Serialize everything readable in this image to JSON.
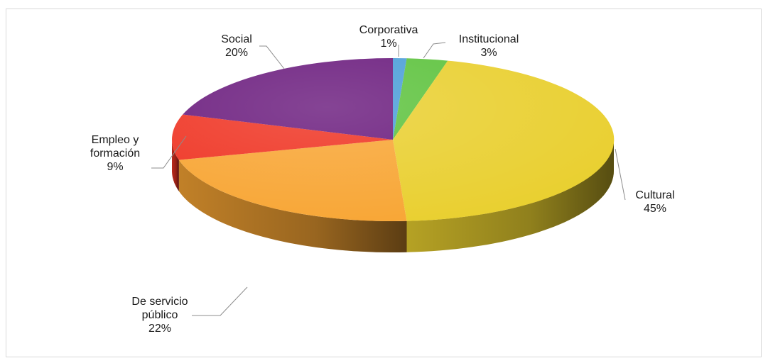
{
  "chart_data": {
    "type": "pie",
    "title": "",
    "legend": "none",
    "slices": [
      {
        "name": "Corporativa",
        "name_lines": [
          "Corporativa"
        ],
        "value": 1,
        "value_label": "1%",
        "color": "#4a9ed8"
      },
      {
        "name": "Institucional",
        "name_lines": [
          "Institucional"
        ],
        "value": 3,
        "value_label": "3%",
        "color": "#5cc23c"
      },
      {
        "name": "Cultural",
        "name_lines": [
          "Cultural"
        ],
        "value": 45,
        "value_label": "45%",
        "color": "#e9cf2e"
      },
      {
        "name": "De servicio público",
        "name_lines": [
          "De servicio",
          "público"
        ],
        "value": 22,
        "value_label": "22%",
        "color": "#f8a533"
      },
      {
        "name": "Empleo y formación",
        "name_lines": [
          "Empleo y",
          "formación"
        ],
        "value": 9,
        "value_label": "9%",
        "color": "#ef3322"
      },
      {
        "name": "Social",
        "name_lines": [
          "Social"
        ],
        "value": 20,
        "value_label": "20%",
        "color": "#6a1b7d"
      }
    ]
  }
}
